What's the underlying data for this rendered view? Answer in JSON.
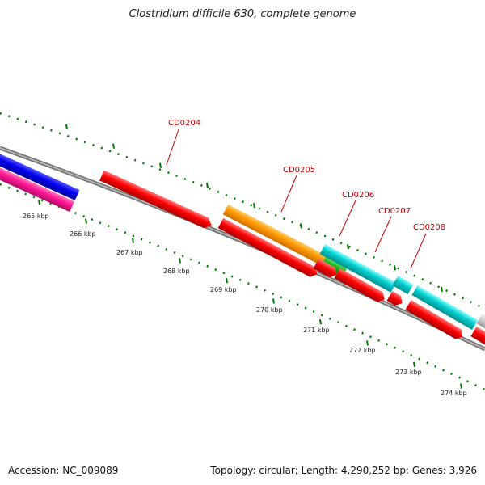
{
  "title": "Clostridium difficile 630, complete genome",
  "accession_label": "Accession: NC_009089",
  "summary_label": "Topology: circular; Length: 4,290,252 bp; Genes: 3,926",
  "ruler": {
    "ticks": [
      {
        "label": "265 kbp"
      },
      {
        "label": "266 kbp"
      },
      {
        "label": "267 kbp"
      },
      {
        "label": "268 kbp"
      },
      {
        "label": "269 kbp"
      },
      {
        "label": "270 kbp"
      },
      {
        "label": "271 kbp"
      },
      {
        "label": "272 kbp"
      },
      {
        "label": "273 kbp"
      },
      {
        "label": "274 kbp"
      }
    ]
  },
  "gene_labels": [
    {
      "label": "CD0204"
    },
    {
      "label": "CD0205"
    },
    {
      "label": "CD0206"
    },
    {
      "label": "CD0207"
    },
    {
      "label": "CD0208"
    }
  ],
  "colors": {
    "red": "#ff0000",
    "orange": "#ff9900",
    "cyan": "#00cccc",
    "green": "#22bb22",
    "blue": "#0000ee",
    "magenta": "#ff1493",
    "gray": "#cccccc",
    "backbone": "#777777",
    "tick": "#007700",
    "label": "#cc0000"
  }
}
